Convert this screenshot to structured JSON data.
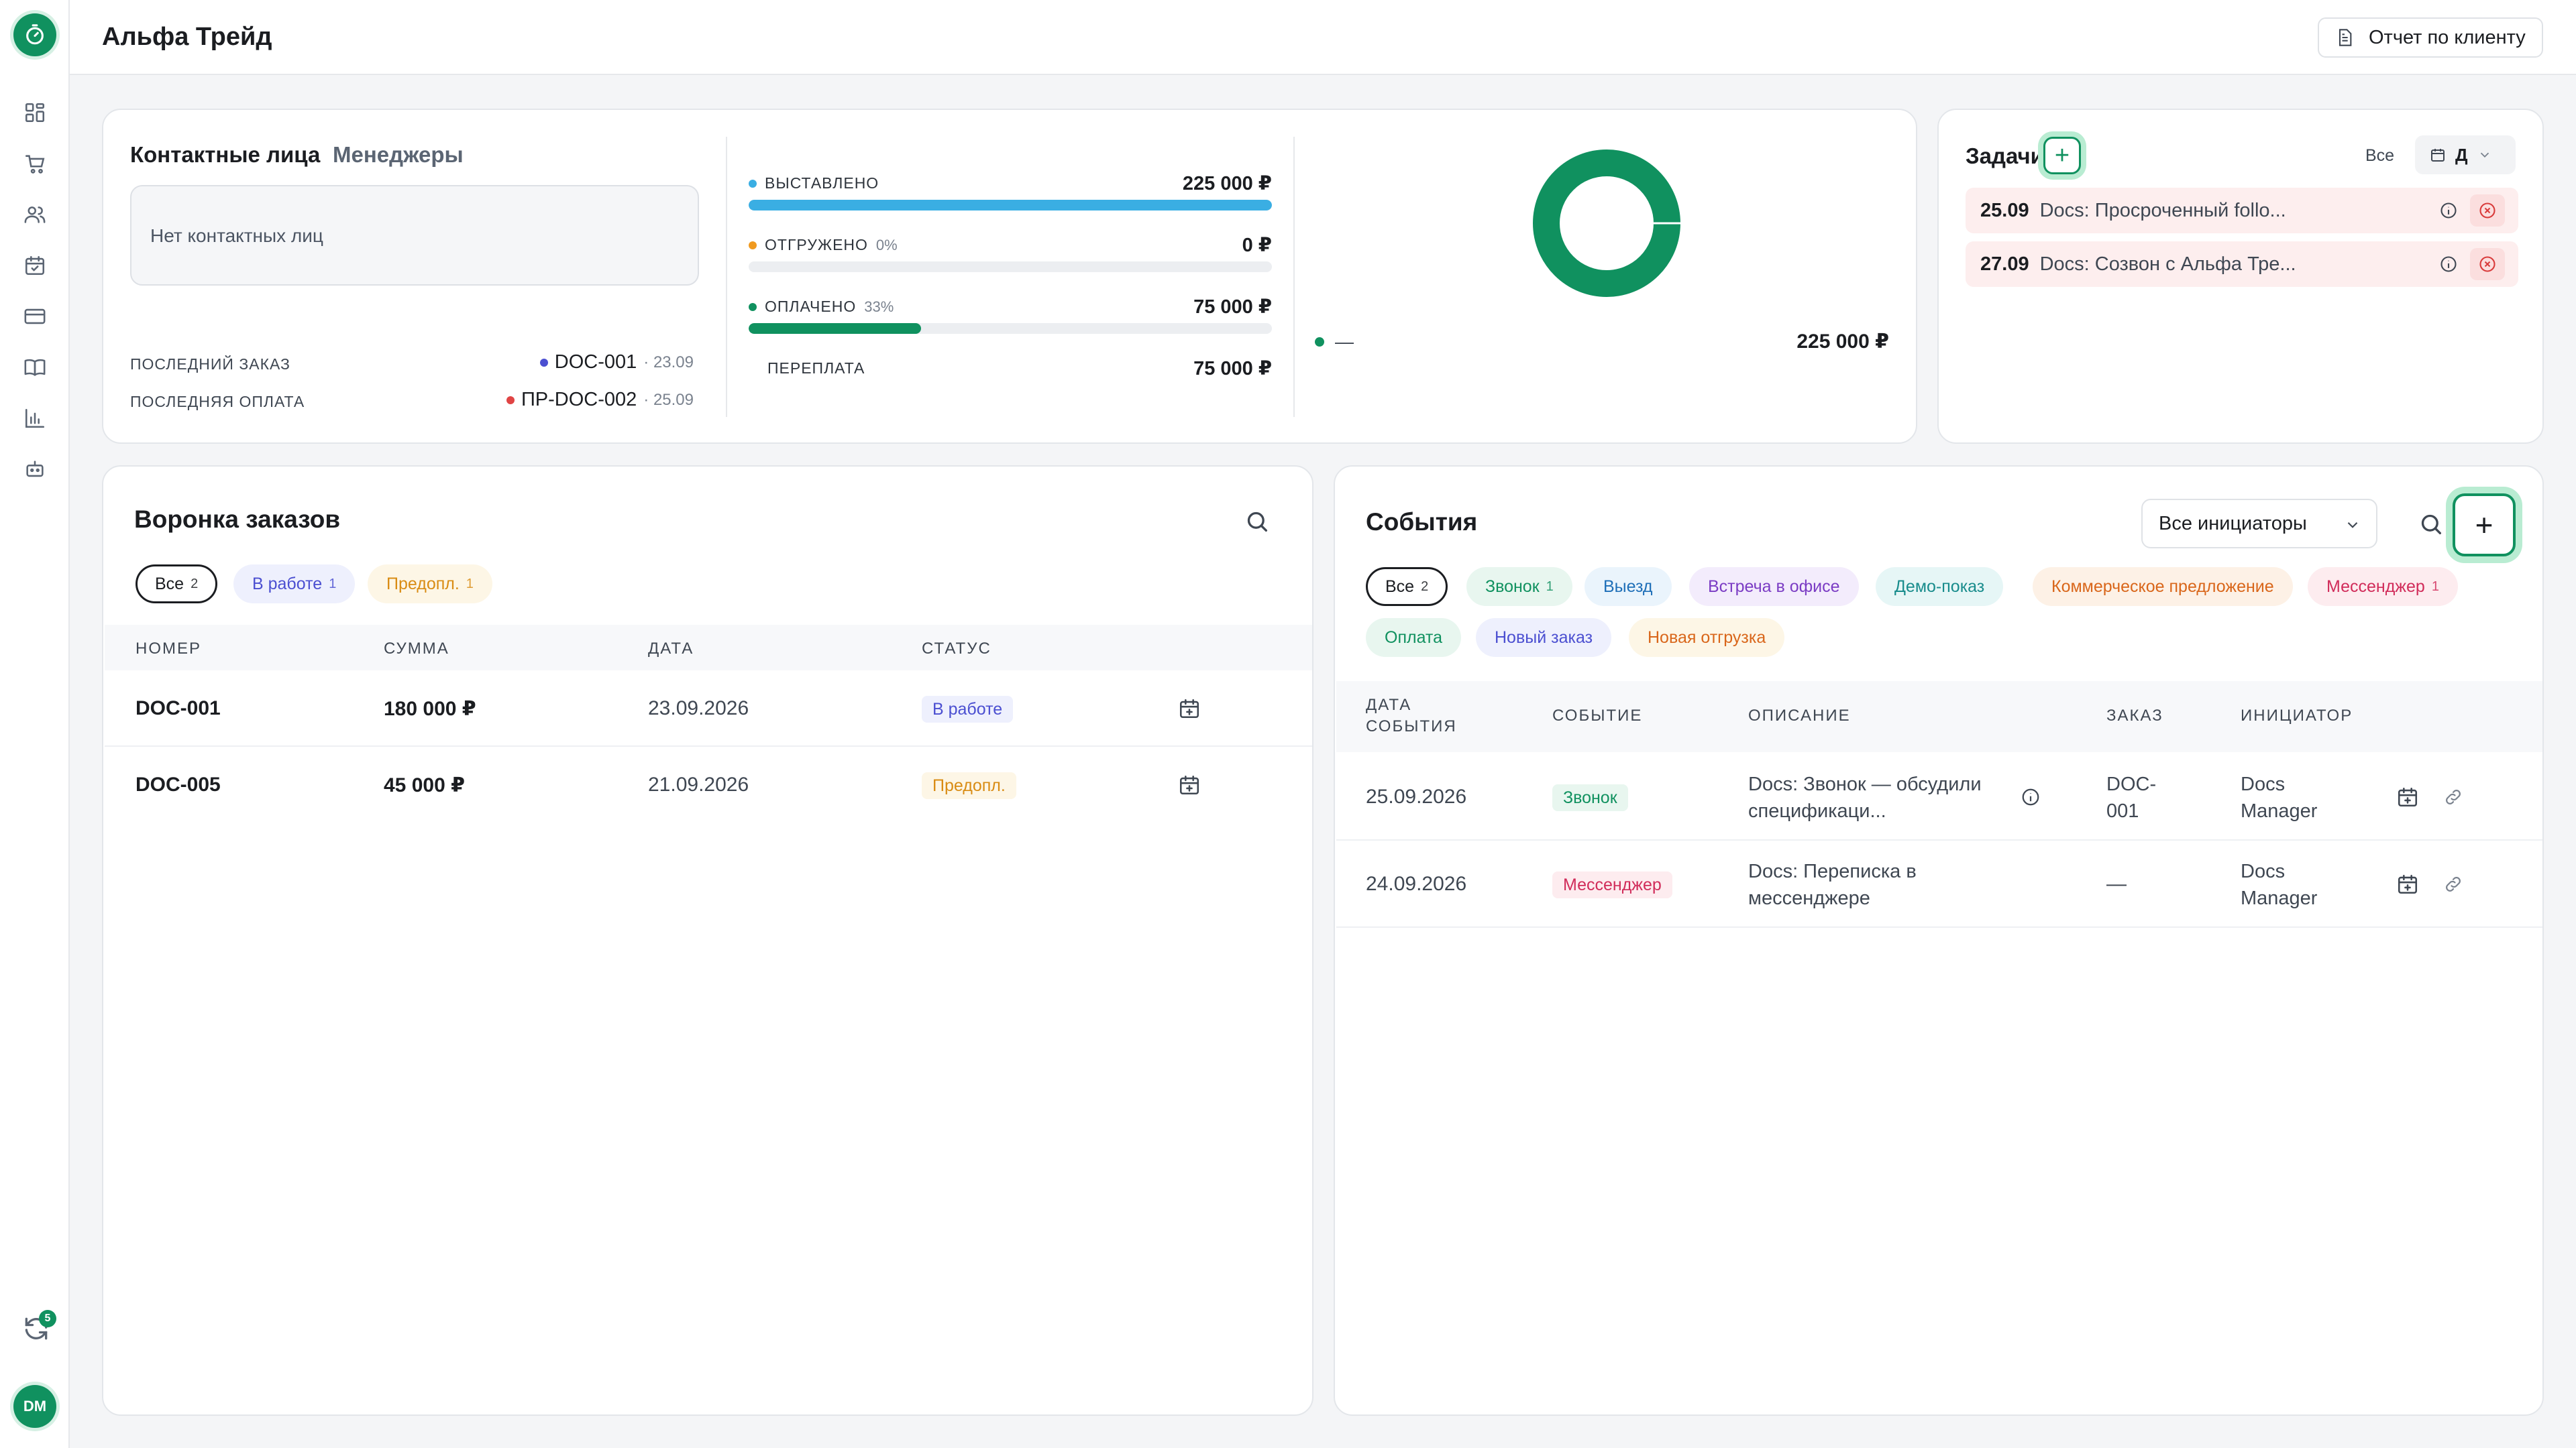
{
  "app": {
    "title": "Альфа Трейд",
    "report_button": "Отчет по клиенту",
    "user_initials": "DM",
    "sync_count": "5"
  },
  "contacts": {
    "tabs": [
      "Контактные лица",
      "Менеджеры"
    ],
    "empty_text": "Нет контактных лиц",
    "last_order_label": "ПОСЛЕДНИЙ ЗАКАЗ",
    "last_order_value": "DOC-001",
    "last_order_date": "· 23.09",
    "last_payment_label": "ПОСЛЕДНЯЯ ОПЛАТА",
    "last_payment_value": "ПР-DOC-002",
    "last_payment_date": "· 25.09"
  },
  "finance": {
    "rows": [
      {
        "label": "ВЫСТАВЛЕНО",
        "pct": "",
        "amount": "225 000 ₽",
        "color": "#3aaee3",
        "fill": 1.0
      },
      {
        "label": "ОТГРУЖЕНО",
        "pct": "0%",
        "amount": "0 ₽",
        "color": "#f09a1f",
        "fill": 0.0
      },
      {
        "label": "ОПЛАЧЕНО",
        "pct": "33%",
        "amount": "75 000 ₽",
        "color": "#10915f",
        "fill": 0.33
      },
      {
        "label": "ПЕРЕПЛАТА",
        "pct": "",
        "amount": "75 000 ₽",
        "color": "",
        "fill": null
      }
    ],
    "donut_legend_label": "—",
    "donut_total": "225 000 ₽",
    "donut_color": "#10915f"
  },
  "tasks": {
    "title": "Задачи",
    "filter_all": "Все",
    "period": "Д",
    "items": [
      {
        "date": "25.09",
        "text": "Docs: Просроченный follo..."
      },
      {
        "date": "27.09",
        "text": "Docs: Созвон с Альфа Тре..."
      }
    ]
  },
  "funnel": {
    "title": "Воронка заказов",
    "chips": [
      {
        "label": "Все",
        "count": "2"
      },
      {
        "label": "В работе",
        "count": "1"
      },
      {
        "label": "Предопл.",
        "count": "1"
      }
    ],
    "columns": [
      "НОМЕР",
      "СУММА",
      "ДАТА",
      "СТАТУС"
    ],
    "rows": [
      {
        "number": "DOC-001",
        "sum": "180 000 ₽",
        "date": "23.09.2026",
        "status": "В работе"
      },
      {
        "number": "DOC-005",
        "sum": "45 000 ₽",
        "date": "21.09.2026",
        "status": "Предопл."
      }
    ]
  },
  "events": {
    "title": "События",
    "initiator_select": "Все инициаторы",
    "chips": [
      {
        "label": "Все",
        "count": "2"
      },
      {
        "label": "Звонок",
        "count": "1"
      },
      {
        "label": "Выезд",
        "count": ""
      },
      {
        "label": "Встреча в офисе",
        "count": ""
      },
      {
        "label": "Демо-показ",
        "count": ""
      },
      {
        "label": "Коммерческое предложение",
        "count": ""
      },
      {
        "label": "Мессенджер",
        "count": "1"
      },
      {
        "label": "Оплата",
        "count": ""
      },
      {
        "label": "Новый заказ",
        "count": ""
      },
      {
        "label": "Новая отгрузка",
        "count": ""
      }
    ],
    "columns": {
      "date_line1": "ДАТА",
      "date_line2": "СОБЫТИЯ",
      "event": "СОБЫТИЕ",
      "description": "ОПИСАНИЕ",
      "order": "ЗАКАЗ",
      "initiator": "ИНИЦИАТОР"
    },
    "rows": [
      {
        "date": "25.09.2026",
        "event": "Звонок",
        "desc1": "Docs: Звонок — обсудили",
        "desc2": "спецификаци...",
        "order1": "DOC-",
        "order2": "001",
        "init1": "Docs",
        "init2": "Manager"
      },
      {
        "date": "24.09.2026",
        "event": "Мессенджер",
        "desc1": "Docs: Переписка в",
        "desc2": "мессенджере",
        "order1": "—",
        "order2": "",
        "init1": "Docs",
        "init2": "Manager"
      }
    ]
  }
}
